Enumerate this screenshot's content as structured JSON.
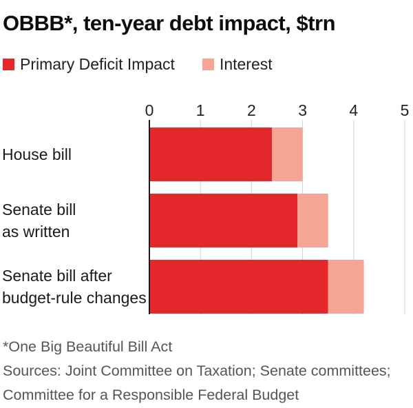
{
  "title": "OBBB*, ten-year debt impact, $trn",
  "colors": {
    "primary": "#e3272b",
    "interest": "#f5a593",
    "axis": "#1a1a1a",
    "grid": "#d4d4d4"
  },
  "chart_data": {
    "type": "bar",
    "orientation": "horizontal",
    "stacked": true,
    "categories": [
      [
        "House bill"
      ],
      [
        "Senate bill",
        "as written"
      ],
      [
        "Senate bill after",
        "budget-rule changes"
      ]
    ],
    "series": [
      {
        "name": "Primary Deficit Impact",
        "color": "#e3272b",
        "values": [
          2.4,
          2.9,
          3.5
        ]
      },
      {
        "name": "Interest",
        "color": "#f5a593",
        "values": [
          0.6,
          0.6,
          0.7
        ]
      }
    ],
    "xlim": [
      0,
      5
    ],
    "xticks": [
      "0",
      "1",
      "2",
      "3",
      "4",
      "5"
    ],
    "grid": true,
    "legend_position": "top-left"
  },
  "notes": [
    "*One Big Beautiful Bill Act",
    "Sources: Joint Committee on Taxation; Senate committees;",
    "Committee for a Responsible Federal Budget"
  ]
}
